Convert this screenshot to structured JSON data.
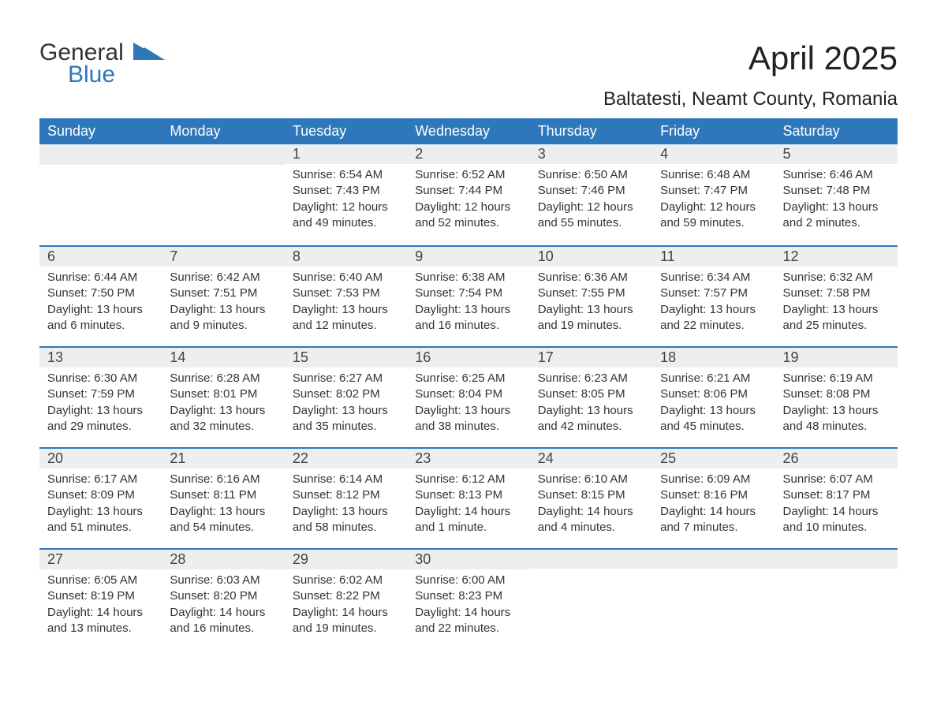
{
  "logo": {
    "general": "General",
    "blue": "Blue"
  },
  "title": "April 2025",
  "location": "Baltatesti, Neamt County, Romania",
  "colors": {
    "header_bg": "#2f77bb",
    "header_text": "#ffffff",
    "daynum_bg": "#eeeeee",
    "body_text": "#333333",
    "accent_border": "#2f77bb"
  },
  "weekdays": [
    "Sunday",
    "Monday",
    "Tuesday",
    "Wednesday",
    "Thursday",
    "Friday",
    "Saturday"
  ],
  "weeks": [
    [
      {
        "day": ""
      },
      {
        "day": ""
      },
      {
        "day": "1",
        "sunrise": "Sunrise: 6:54 AM",
        "sunset": "Sunset: 7:43 PM",
        "dl1": "Daylight: 12 hours",
        "dl2": "and 49 minutes."
      },
      {
        "day": "2",
        "sunrise": "Sunrise: 6:52 AM",
        "sunset": "Sunset: 7:44 PM",
        "dl1": "Daylight: 12 hours",
        "dl2": "and 52 minutes."
      },
      {
        "day": "3",
        "sunrise": "Sunrise: 6:50 AM",
        "sunset": "Sunset: 7:46 PM",
        "dl1": "Daylight: 12 hours",
        "dl2": "and 55 minutes."
      },
      {
        "day": "4",
        "sunrise": "Sunrise: 6:48 AM",
        "sunset": "Sunset: 7:47 PM",
        "dl1": "Daylight: 12 hours",
        "dl2": "and 59 minutes."
      },
      {
        "day": "5",
        "sunrise": "Sunrise: 6:46 AM",
        "sunset": "Sunset: 7:48 PM",
        "dl1": "Daylight: 13 hours",
        "dl2": "and 2 minutes."
      }
    ],
    [
      {
        "day": "6",
        "sunrise": "Sunrise: 6:44 AM",
        "sunset": "Sunset: 7:50 PM",
        "dl1": "Daylight: 13 hours",
        "dl2": "and 6 minutes."
      },
      {
        "day": "7",
        "sunrise": "Sunrise: 6:42 AM",
        "sunset": "Sunset: 7:51 PM",
        "dl1": "Daylight: 13 hours",
        "dl2": "and 9 minutes."
      },
      {
        "day": "8",
        "sunrise": "Sunrise: 6:40 AM",
        "sunset": "Sunset: 7:53 PM",
        "dl1": "Daylight: 13 hours",
        "dl2": "and 12 minutes."
      },
      {
        "day": "9",
        "sunrise": "Sunrise: 6:38 AM",
        "sunset": "Sunset: 7:54 PM",
        "dl1": "Daylight: 13 hours",
        "dl2": "and 16 minutes."
      },
      {
        "day": "10",
        "sunrise": "Sunrise: 6:36 AM",
        "sunset": "Sunset: 7:55 PM",
        "dl1": "Daylight: 13 hours",
        "dl2": "and 19 minutes."
      },
      {
        "day": "11",
        "sunrise": "Sunrise: 6:34 AM",
        "sunset": "Sunset: 7:57 PM",
        "dl1": "Daylight: 13 hours",
        "dl2": "and 22 minutes."
      },
      {
        "day": "12",
        "sunrise": "Sunrise: 6:32 AM",
        "sunset": "Sunset: 7:58 PM",
        "dl1": "Daylight: 13 hours",
        "dl2": "and 25 minutes."
      }
    ],
    [
      {
        "day": "13",
        "sunrise": "Sunrise: 6:30 AM",
        "sunset": "Sunset: 7:59 PM",
        "dl1": "Daylight: 13 hours",
        "dl2": "and 29 minutes."
      },
      {
        "day": "14",
        "sunrise": "Sunrise: 6:28 AM",
        "sunset": "Sunset: 8:01 PM",
        "dl1": "Daylight: 13 hours",
        "dl2": "and 32 minutes."
      },
      {
        "day": "15",
        "sunrise": "Sunrise: 6:27 AM",
        "sunset": "Sunset: 8:02 PM",
        "dl1": "Daylight: 13 hours",
        "dl2": "and 35 minutes."
      },
      {
        "day": "16",
        "sunrise": "Sunrise: 6:25 AM",
        "sunset": "Sunset: 8:04 PM",
        "dl1": "Daylight: 13 hours",
        "dl2": "and 38 minutes."
      },
      {
        "day": "17",
        "sunrise": "Sunrise: 6:23 AM",
        "sunset": "Sunset: 8:05 PM",
        "dl1": "Daylight: 13 hours",
        "dl2": "and 42 minutes."
      },
      {
        "day": "18",
        "sunrise": "Sunrise: 6:21 AM",
        "sunset": "Sunset: 8:06 PM",
        "dl1": "Daylight: 13 hours",
        "dl2": "and 45 minutes."
      },
      {
        "day": "19",
        "sunrise": "Sunrise: 6:19 AM",
        "sunset": "Sunset: 8:08 PM",
        "dl1": "Daylight: 13 hours",
        "dl2": "and 48 minutes."
      }
    ],
    [
      {
        "day": "20",
        "sunrise": "Sunrise: 6:17 AM",
        "sunset": "Sunset: 8:09 PM",
        "dl1": "Daylight: 13 hours",
        "dl2": "and 51 minutes."
      },
      {
        "day": "21",
        "sunrise": "Sunrise: 6:16 AM",
        "sunset": "Sunset: 8:11 PM",
        "dl1": "Daylight: 13 hours",
        "dl2": "and 54 minutes."
      },
      {
        "day": "22",
        "sunrise": "Sunrise: 6:14 AM",
        "sunset": "Sunset: 8:12 PM",
        "dl1": "Daylight: 13 hours",
        "dl2": "and 58 minutes."
      },
      {
        "day": "23",
        "sunrise": "Sunrise: 6:12 AM",
        "sunset": "Sunset: 8:13 PM",
        "dl1": "Daylight: 14 hours",
        "dl2": "and 1 minute."
      },
      {
        "day": "24",
        "sunrise": "Sunrise: 6:10 AM",
        "sunset": "Sunset: 8:15 PM",
        "dl1": "Daylight: 14 hours",
        "dl2": "and 4 minutes."
      },
      {
        "day": "25",
        "sunrise": "Sunrise: 6:09 AM",
        "sunset": "Sunset: 8:16 PM",
        "dl1": "Daylight: 14 hours",
        "dl2": "and 7 minutes."
      },
      {
        "day": "26",
        "sunrise": "Sunrise: 6:07 AM",
        "sunset": "Sunset: 8:17 PM",
        "dl1": "Daylight: 14 hours",
        "dl2": "and 10 minutes."
      }
    ],
    [
      {
        "day": "27",
        "sunrise": "Sunrise: 6:05 AM",
        "sunset": "Sunset: 8:19 PM",
        "dl1": "Daylight: 14 hours",
        "dl2": "and 13 minutes."
      },
      {
        "day": "28",
        "sunrise": "Sunrise: 6:03 AM",
        "sunset": "Sunset: 8:20 PM",
        "dl1": "Daylight: 14 hours",
        "dl2": "and 16 minutes."
      },
      {
        "day": "29",
        "sunrise": "Sunrise: 6:02 AM",
        "sunset": "Sunset: 8:22 PM",
        "dl1": "Daylight: 14 hours",
        "dl2": "and 19 minutes."
      },
      {
        "day": "30",
        "sunrise": "Sunrise: 6:00 AM",
        "sunset": "Sunset: 8:23 PM",
        "dl1": "Daylight: 14 hours",
        "dl2": "and 22 minutes."
      },
      {
        "day": ""
      },
      {
        "day": ""
      },
      {
        "day": ""
      }
    ]
  ]
}
